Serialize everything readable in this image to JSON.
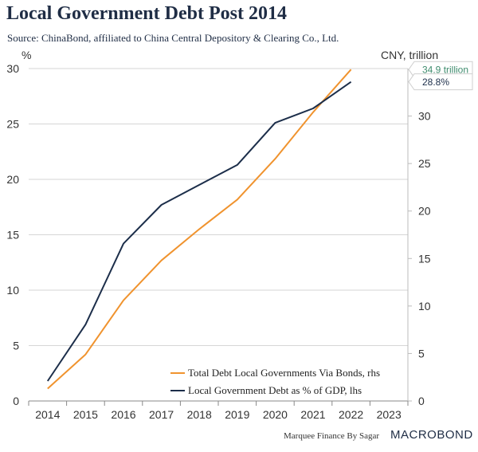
{
  "chart_data": {
    "type": "line",
    "title": "Local Government Debt Post 2014",
    "subtitle": "Source: ChinaBond, affiliated to China Central Depository & Clearing Co., Ltd.",
    "left_axis_unit": "%",
    "right_axis_unit": "CNY, trillion",
    "categories": [
      "2014",
      "2015",
      "2016",
      "2017",
      "2018",
      "2019",
      "2020",
      "2021",
      "2022",
      "2023"
    ],
    "left_ylim": [
      0,
      30
    ],
    "left_ticks": [
      0,
      5,
      10,
      15,
      20,
      25,
      30
    ],
    "right_ylim": [
      0,
      35
    ],
    "right_ticks": [
      0,
      5,
      10,
      15,
      20,
      25,
      30
    ],
    "series": [
      {
        "name": "Total Debt Local Governments Via Bonds, rhs",
        "axis": "right",
        "color": "#f0932e",
        "x": [
          2014,
          2015,
          2016,
          2017,
          2018,
          2019,
          2020,
          2021,
          2022
        ],
        "values": [
          1.3,
          4.9,
          10.6,
          14.8,
          18.1,
          21.2,
          25.5,
          30.4,
          34.9
        ],
        "end_label": "34.9 trillion",
        "end_label_color": "#3f8c6e"
      },
      {
        "name": "Local Government Debt as % of GDP, lhs",
        "axis": "left",
        "color": "#1c2e4a",
        "x": [
          2014,
          2015,
          2016,
          2017,
          2018,
          2019,
          2020,
          2021,
          2022
        ],
        "values": [
          1.8,
          6.9,
          14.2,
          17.7,
          19.5,
          21.3,
          25.1,
          26.4,
          28.8
        ],
        "end_label": "28.8%",
        "end_label_color": "#1c2e4a"
      }
    ]
  },
  "footer": {
    "credit": "Marquee Finance By Sagar",
    "brand": "MACROBOND"
  }
}
